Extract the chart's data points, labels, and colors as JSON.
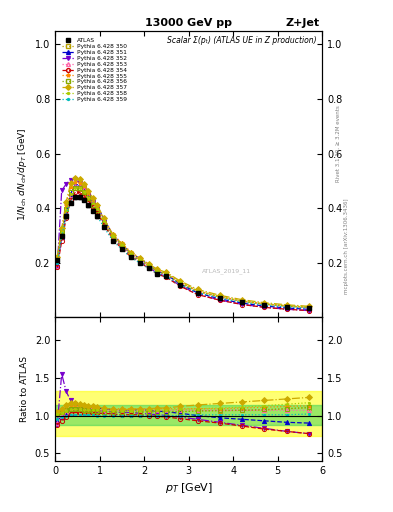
{
  "title_top": "13000 GeV pp",
  "title_right": "Z+Jet",
  "plot_title": "Scalar Σ(pₜ) (ATLAS UE in Z production)",
  "ylabel_main": "1/N_{ch} dN_{ch}/dp_T [GeV]",
  "ylabel_ratio": "Ratio to ATLAS",
  "xlabel": "p_T [GeV]",
  "watermark": "ATLAS_2019_11",
  "right_label1": "Rivet 3.1.10, ≥ 3.2M events",
  "right_label2": "mcplots.cern.ch [arXiv:1306.3436]",
  "xlim": [
    0,
    6
  ],
  "ylim_main": [
    0.0,
    1.05
  ],
  "ylim_ratio": [
    0.4,
    2.3
  ],
  "yticks_main": [
    0.2,
    0.4,
    0.6,
    0.8,
    1.0
  ],
  "yticks_ratio": [
    0.5,
    1.0,
    1.5,
    2.0
  ],
  "pt_data": [
    0.05,
    0.15,
    0.25,
    0.35,
    0.45,
    0.55,
    0.65,
    0.75,
    0.85,
    0.95,
    1.1,
    1.3,
    1.5,
    1.7,
    1.9,
    2.1,
    2.3,
    2.5,
    2.8,
    3.2,
    3.7,
    4.2,
    4.7,
    5.2,
    5.7
  ],
  "atlas_y": [
    0.21,
    0.3,
    0.37,
    0.42,
    0.44,
    0.44,
    0.43,
    0.41,
    0.39,
    0.37,
    0.33,
    0.28,
    0.25,
    0.22,
    0.2,
    0.18,
    0.16,
    0.15,
    0.12,
    0.09,
    0.07,
    0.055,
    0.045,
    0.038,
    0.033
  ],
  "atlas_yerr": [
    0.005,
    0.005,
    0.005,
    0.005,
    0.005,
    0.005,
    0.005,
    0.005,
    0.005,
    0.005,
    0.004,
    0.004,
    0.004,
    0.004,
    0.003,
    0.003,
    0.003,
    0.003,
    0.003,
    0.002,
    0.002,
    0.002,
    0.002,
    0.002,
    0.002
  ],
  "pythia_configs": [
    {
      "label": "Pythia 6.428 350",
      "color": "#b8a000",
      "linestyle": "dotted",
      "marker": "s",
      "mfc": "none"
    },
    {
      "label": "Pythia 6.428 351",
      "color": "#0000cc",
      "linestyle": "dashed",
      "marker": "^",
      "mfc": "#0000cc"
    },
    {
      "label": "Pythia 6.428 352",
      "color": "#7700cc",
      "linestyle": "dashdot",
      "marker": "v",
      "mfc": "#7700cc"
    },
    {
      "label": "Pythia 6.428 353",
      "color": "#ff66aa",
      "linestyle": "dotted",
      "marker": "^",
      "mfc": "none"
    },
    {
      "label": "Pythia 6.428 354",
      "color": "#cc0000",
      "linestyle": "dashed",
      "marker": "o",
      "mfc": "none"
    },
    {
      "label": "Pythia 6.428 355",
      "color": "#ff8800",
      "linestyle": "dotted",
      "marker": "*",
      "mfc": "#ff8800"
    },
    {
      "label": "Pythia 6.428 356",
      "color": "#88aa00",
      "linestyle": "dotted",
      "marker": "s",
      "mfc": "none"
    },
    {
      "label": "Pythia 6.428 357",
      "color": "#ccaa00",
      "linestyle": "dashdot",
      "marker": "D",
      "mfc": "#ccaa00"
    },
    {
      "label": "Pythia 6.428 358",
      "color": "#aacc00",
      "linestyle": "dotted",
      "marker": ".",
      "mfc": "#aacc00"
    },
    {
      "label": "Pythia 6.428 359",
      "color": "#00bbbb",
      "linestyle": "dotted",
      "marker": ".",
      "mfc": "#00bbbb"
    }
  ],
  "pythia_scales": [
    [
      1.03,
      1.05,
      1.07,
      1.09,
      1.08,
      1.07,
      1.06,
      1.06,
      1.05,
      1.05,
      1.05,
      1.04,
      1.04,
      1.04,
      1.04,
      1.05,
      1.05,
      1.05,
      1.05,
      1.06,
      1.06,
      1.07,
      1.07,
      1.09,
      1.1
    ],
    [
      0.93,
      0.98,
      1.03,
      1.08,
      1.1,
      1.11,
      1.11,
      1.11,
      1.1,
      1.1,
      1.09,
      1.08,
      1.07,
      1.07,
      1.08,
      1.07,
      1.06,
      1.05,
      1.03,
      1.0,
      0.97,
      0.95,
      0.93,
      0.91,
      0.9
    ],
    [
      0.88,
      1.55,
      1.32,
      1.2,
      1.15,
      1.12,
      1.1,
      1.09,
      1.08,
      1.07,
      1.06,
      1.05,
      1.04,
      1.04,
      1.03,
      1.02,
      1.01,
      1.0,
      0.98,
      0.95,
      0.91,
      0.87,
      0.83,
      0.79,
      0.76
    ],
    [
      0.9,
      1.0,
      1.04,
      1.07,
      1.09,
      1.09,
      1.09,
      1.09,
      1.09,
      1.08,
      1.07,
      1.07,
      1.06,
      1.07,
      1.07,
      1.07,
      1.07,
      1.07,
      1.07,
      1.07,
      1.07,
      1.07,
      1.07,
      1.07,
      1.07
    ],
    [
      0.88,
      0.93,
      0.98,
      1.02,
      1.04,
      1.04,
      1.04,
      1.04,
      1.04,
      1.03,
      1.03,
      1.02,
      1.01,
      1.01,
      1.01,
      1.0,
      0.99,
      0.98,
      0.96,
      0.93,
      0.9,
      0.86,
      0.82,
      0.79,
      0.76
    ],
    [
      1.04,
      1.07,
      1.11,
      1.14,
      1.13,
      1.12,
      1.12,
      1.11,
      1.11,
      1.1,
      1.09,
      1.09,
      1.09,
      1.09,
      1.09,
      1.09,
      1.09,
      1.09,
      1.09,
      1.09,
      1.09,
      1.1,
      1.11,
      1.12,
      1.13
    ],
    [
      1.03,
      1.05,
      1.07,
      1.09,
      1.08,
      1.08,
      1.07,
      1.07,
      1.06,
      1.06,
      1.05,
      1.05,
      1.05,
      1.05,
      1.05,
      1.05,
      1.05,
      1.05,
      1.05,
      1.06,
      1.07,
      1.07,
      1.08,
      1.09,
      1.11
    ],
    [
      1.05,
      1.09,
      1.14,
      1.17,
      1.16,
      1.15,
      1.14,
      1.13,
      1.12,
      1.11,
      1.1,
      1.08,
      1.08,
      1.08,
      1.09,
      1.09,
      1.1,
      1.1,
      1.12,
      1.14,
      1.16,
      1.18,
      1.2,
      1.22,
      1.24
    ],
    [
      1.02,
      1.04,
      1.06,
      1.08,
      1.08,
      1.08,
      1.07,
      1.07,
      1.07,
      1.07,
      1.07,
      1.06,
      1.06,
      1.06,
      1.06,
      1.07,
      1.07,
      1.07,
      1.08,
      1.09,
      1.1,
      1.11,
      1.13,
      1.15,
      1.17
    ],
    [
      0.95,
      0.98,
      1.0,
      1.01,
      1.01,
      1.01,
      1.01,
      1.01,
      1.01,
      1.0,
      1.0,
      1.0,
      1.0,
      1.0,
      1.0,
      1.0,
      1.0,
      1.0,
      1.0,
      1.01,
      1.01,
      1.01,
      1.01,
      1.01,
      1.02
    ]
  ],
  "band_yellow": [
    0.73,
    1.32
  ],
  "band_green": [
    0.87,
    1.14
  ]
}
